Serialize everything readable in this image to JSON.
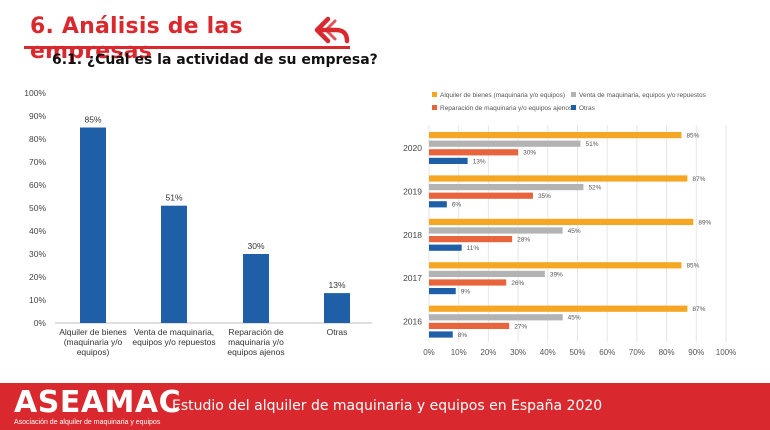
{
  "header": {
    "title": "6. Análisis de las empresas",
    "subtitle": "6.1. ¿Cuál es la actividad de su empresa?"
  },
  "icons": {
    "back": "double-back-arrow-icon"
  },
  "colors": {
    "brand_red": "#d9292e",
    "blue": "#1f5fa8",
    "orange": "#f5a623",
    "gray": "#b3b3b3",
    "coral": "#e8643c"
  },
  "chart_data": [
    {
      "type": "bar",
      "categories": [
        [
          "Alquiler de bienes",
          "(maquinaria y/o",
          "equipos)"
        ],
        [
          "Venta de maquinaria,",
          "equipos y/o repuestos"
        ],
        [
          "Reparación de",
          "maquinaria y/o",
          "equipos ajenos"
        ],
        [
          "Otras"
        ]
      ],
      "values": [
        85,
        51,
        30,
        13
      ],
      "data_labels": [
        "85%",
        "51%",
        "30%",
        "13%"
      ],
      "ylim": [
        0,
        100
      ],
      "yticks": [
        "0%",
        "10%",
        "20%",
        "30%",
        "40%",
        "50%",
        "60%",
        "70%",
        "80%",
        "90%",
        "100%"
      ],
      "grid": false
    },
    {
      "type": "bar",
      "orientation": "horizontal",
      "categories": [
        "2020",
        "2019",
        "2018",
        "2017",
        "2016"
      ],
      "series": [
        {
          "name": "Alquiler de bienes (maquinaria y/o equipos)",
          "values": [
            85,
            87,
            89,
            85,
            87
          ],
          "labels": [
            "85%",
            "87%",
            "89%",
            "85%",
            "87%"
          ]
        },
        {
          "name": "Venta de maquinaria, equipos y/o repuestos",
          "values": [
            51,
            52,
            45,
            39,
            45
          ],
          "labels": [
            "51%",
            "52%",
            "45%",
            "39%",
            "45%"
          ]
        },
        {
          "name": "Reparación de maquinaria y/o equipos ajenos",
          "values": [
            30,
            35,
            28,
            26,
            27
          ],
          "labels": [
            "30%",
            "35%",
            "28%",
            "26%",
            "27%"
          ]
        },
        {
          "name": "Otras",
          "values": [
            13,
            6,
            11,
            9,
            8
          ],
          "labels": [
            "13%",
            "6%",
            "11%",
            "9%",
            "8%"
          ]
        }
      ],
      "xlim": [
        0,
        100
      ],
      "xticks": [
        "0%",
        "10%",
        "20%",
        "30%",
        "40%",
        "50%",
        "60%",
        "70%",
        "80%",
        "90%",
        "100%"
      ],
      "grid": true,
      "legend": "top"
    }
  ],
  "footer": {
    "logo": "ASEAMAC",
    "logo_tagline": "Asociación de alquiler de maquinaria y equipos",
    "text": "Estudio del alquiler de maquinaria y equipos en España 2020"
  }
}
